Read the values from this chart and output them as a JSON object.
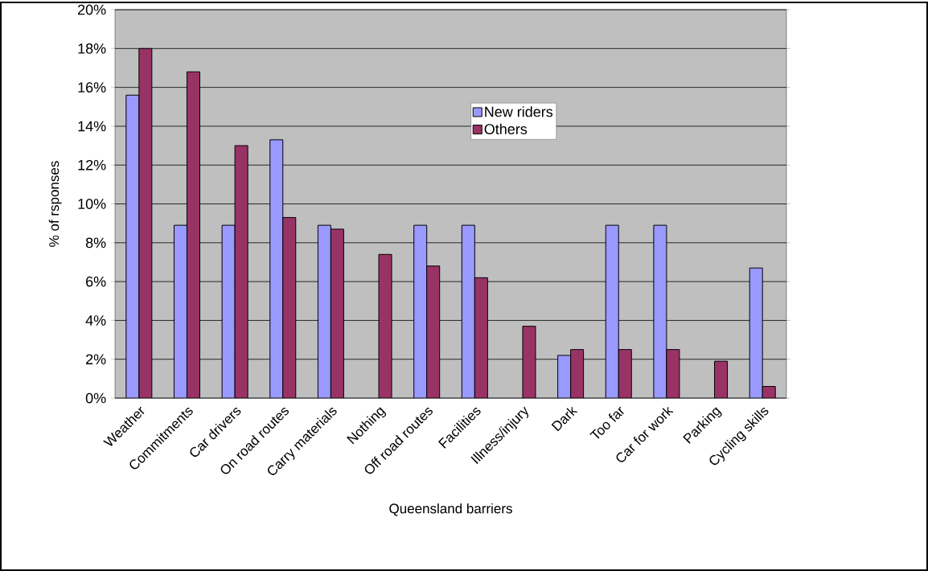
{
  "chart_data": {
    "type": "bar",
    "xlabel": "Queensland barriers",
    "ylabel": "% of rsponses",
    "categories": [
      "Weather",
      "Commitments",
      "Car drivers",
      "On road routes",
      "Carry materials",
      "Nothing",
      "Off road routes",
      "Facilities",
      "Illness/injury",
      "Dark",
      "Too far",
      "Car for work",
      "Parking",
      "Cycling skills"
    ],
    "series": [
      {
        "name": "New riders",
        "color": "#9999ff",
        "values": [
          15.6,
          8.9,
          8.9,
          13.3,
          8.9,
          null,
          8.9,
          8.9,
          null,
          2.2,
          8.9,
          8.9,
          null,
          6.7
        ]
      },
      {
        "name": "Others",
        "color": "#993366",
        "values": [
          18.0,
          16.8,
          13.0,
          9.3,
          8.7,
          7.4,
          6.8,
          6.2,
          3.7,
          2.5,
          2.5,
          2.5,
          1.9,
          0.6
        ]
      }
    ],
    "ylim": [
      0,
      20
    ],
    "yticks": [
      {
        "value": 0,
        "label": "0%"
      },
      {
        "value": 2,
        "label": "2%"
      },
      {
        "value": 4,
        "label": "4%"
      },
      {
        "value": 6,
        "label": "6%"
      },
      {
        "value": 8,
        "label": "8%"
      },
      {
        "value": 10,
        "label": "10%"
      },
      {
        "value": 12,
        "label": "12%"
      },
      {
        "value": 14,
        "label": "14%"
      },
      {
        "value": 16,
        "label": "16%"
      },
      {
        "value": 18,
        "label": "18%"
      },
      {
        "value": 20,
        "label": "20%"
      }
    ],
    "grid": "y",
    "legend": "top"
  }
}
